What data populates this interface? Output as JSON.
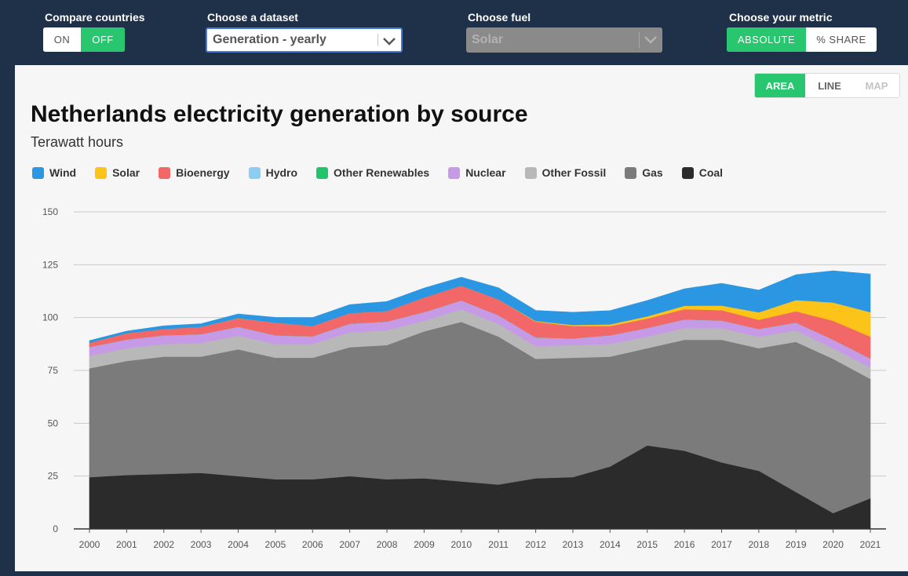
{
  "controls": {
    "compare": {
      "label": "Compare countries",
      "on_label": "ON",
      "off_label": "OFF"
    },
    "dataset": {
      "label": "Choose a dataset",
      "value": "Generation - yearly"
    },
    "fuel": {
      "label": "Choose fuel",
      "value": "Solar"
    },
    "metric": {
      "label": "Choose your metric",
      "absolute_label": "ABSOLUTE",
      "share_label": "% SHARE"
    }
  },
  "chart_type": {
    "area_label": "AREA",
    "line_label": "LINE",
    "map_label": "MAP"
  },
  "colors": {
    "accent": "#28c76f",
    "header_bg": "#1f3049"
  },
  "chart_data": {
    "type": "area",
    "stacked": true,
    "title": "Netherlands electricity generation by source",
    "subtitle": "Terawatt hours",
    "xlabel": "",
    "ylabel": "",
    "ylim": [
      0,
      150
    ],
    "yticks": [
      0,
      25,
      50,
      75,
      100,
      125,
      150
    ],
    "grid": true,
    "legend_position": "top-left",
    "categories": [
      "2000",
      "2001",
      "2002",
      "2003",
      "2004",
      "2005",
      "2006",
      "2007",
      "2008",
      "2009",
      "2010",
      "2011",
      "2012",
      "2013",
      "2014",
      "2015",
      "2016",
      "2017",
      "2018",
      "2019",
      "2020",
      "2021"
    ],
    "series": [
      {
        "name": "Coal",
        "color": "#2b2b2b",
        "values": [
          24.5,
          25.5,
          26,
          26.5,
          25,
          23.5,
          23.5,
          25,
          23.5,
          24,
          22.5,
          21,
          24,
          24.5,
          29.5,
          39.5,
          37,
          31.5,
          27.5,
          17.5,
          7.5,
          14.5
        ]
      },
      {
        "name": "Gas",
        "color": "#7b7b7b",
        "values": [
          51.5,
          54,
          55.5,
          55,
          60,
          57.5,
          57.5,
          61,
          63.5,
          69.5,
          75.5,
          70,
          56.5,
          56.5,
          52,
          46,
          52.5,
          58,
          58,
          71,
          73,
          56.5
        ]
      },
      {
        "name": "Other Fossil",
        "color": "#b8b8b8",
        "values": [
          6,
          6,
          6,
          6.5,
          6.5,
          6.5,
          6.5,
          7,
          7,
          5,
          6,
          6,
          6,
          6,
          6,
          5.5,
          5.5,
          5.5,
          5.5,
          5.5,
          5,
          5.5
        ]
      },
      {
        "name": "Nuclear",
        "color": "#c69ae6",
        "values": [
          4,
          4,
          4,
          4,
          4,
          4,
          3.5,
          4,
          4,
          4,
          4,
          4,
          4,
          3,
          4,
          4,
          4,
          3.5,
          3.5,
          3.5,
          4,
          4
        ]
      },
      {
        "name": "Other Renewables",
        "color": "#1fc46c",
        "values": [
          0,
          0,
          0,
          0,
          0,
          0,
          0,
          0,
          0,
          0,
          0,
          0,
          0,
          0,
          0,
          0,
          0,
          0,
          0,
          0,
          0,
          0
        ]
      },
      {
        "name": "Hydro",
        "color": "#8ecdf2",
        "values": [
          0.1,
          0.1,
          0.1,
          0.1,
          0.1,
          0.1,
          0.1,
          0.1,
          0.1,
          0.1,
          0.1,
          0.1,
          0.1,
          0.1,
          0.1,
          0.1,
          0.1,
          0.1,
          0.1,
          0.1,
          0.1,
          0.1
        ]
      },
      {
        "name": "Bioenergy",
        "color": "#f26767",
        "values": [
          2,
          3,
          3,
          3.5,
          4,
          6,
          4.9,
          5,
          5,
          6.9,
          7,
          7.5,
          7.5,
          5.9,
          4.4,
          4.4,
          4.9,
          4.9,
          4.4,
          5.4,
          8.9,
          10.4
        ]
      },
      {
        "name": "Solar",
        "color": "#fcc419",
        "values": [
          0,
          0,
          0,
          0,
          0.1,
          0,
          0,
          0,
          0,
          0,
          0,
          0,
          0.3,
          0.5,
          0.8,
          1.1,
          1.6,
          2.2,
          3.5,
          5.3,
          8.6,
          11.6
        ]
      },
      {
        "name": "Wind",
        "color": "#2b97e3",
        "values": [
          1,
          1,
          1.5,
          1.5,
          2,
          2.5,
          4,
          4,
          4.5,
          4.5,
          4,
          5.5,
          5,
          6,
          6.5,
          7.5,
          8,
          10.5,
          10.5,
          12,
          15,
          18
        ]
      }
    ]
  }
}
